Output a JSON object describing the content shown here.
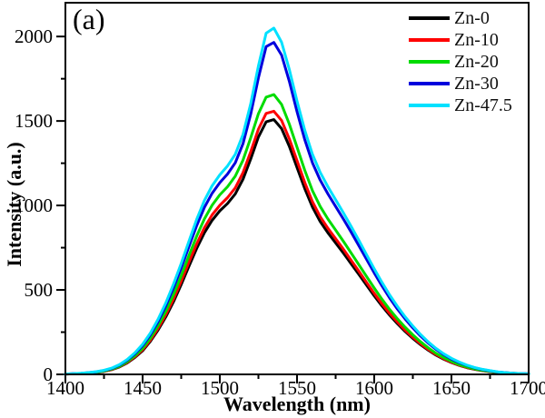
{
  "figure_label": "(a)",
  "axes": {
    "x": {
      "label": "Wavelength (nm)",
      "min": 1400,
      "max": 1700,
      "major_ticks": [
        1400,
        1450,
        1500,
        1550,
        1600,
        1650,
        1700
      ],
      "minor_step": 25
    },
    "y": {
      "label": "Intensity (a.u.)",
      "min": 0,
      "max": 2200,
      "major_ticks": [
        0,
        500,
        1000,
        1500,
        2000
      ],
      "minor_step": 250
    }
  },
  "legend": [
    {
      "label": "Zn-0",
      "color": "#000000"
    },
    {
      "label": "Zn-10",
      "color": "#ff0000"
    },
    {
      "label": "Zn-20",
      "color": "#00dc00"
    },
    {
      "label": "Zn-30",
      "color": "#0000dd"
    },
    {
      "label": "Zn-47.5",
      "color": "#00e1ff"
    }
  ],
  "chart_data": {
    "type": "line",
    "title": "",
    "xlabel": "Wavelength (nm)",
    "ylabel": "Intensity (a.u.)",
    "xlim": [
      1400,
      1700
    ],
    "ylim": [
      0,
      2200
    ],
    "grid": false,
    "legend_position": "top-right",
    "x": [
      1400,
      1405,
      1410,
      1415,
      1420,
      1425,
      1430,
      1435,
      1440,
      1445,
      1450,
      1455,
      1460,
      1465,
      1470,
      1475,
      1480,
      1485,
      1490,
      1495,
      1500,
      1505,
      1510,
      1515,
      1520,
      1525,
      1530,
      1535,
      1540,
      1545,
      1550,
      1555,
      1560,
      1565,
      1570,
      1575,
      1580,
      1585,
      1590,
      1595,
      1600,
      1605,
      1610,
      1615,
      1620,
      1625,
      1630,
      1635,
      1640,
      1645,
      1650,
      1655,
      1660,
      1665,
      1670,
      1675,
      1680,
      1685,
      1690,
      1695,
      1700
    ],
    "series": [
      {
        "name": "Zn-0",
        "color": "#000000",
        "values": [
          2,
          3,
          5,
          8,
          12,
          18,
          28,
          44,
          68,
          100,
          140,
          195,
          262,
          340,
          430,
          532,
          640,
          745,
          838,
          912,
          968,
          1012,
          1068,
          1155,
          1275,
          1405,
          1495,
          1508,
          1455,
          1350,
          1225,
          1100,
          990,
          905,
          838,
          778,
          718,
          655,
          592,
          528,
          465,
          405,
          350,
          300,
          254,
          213,
          176,
          143,
          114,
          90,
          70,
          53,
          40,
          30,
          22,
          16,
          11,
          8,
          6,
          4,
          3
        ]
      },
      {
        "name": "Zn-10",
        "color": "#ff0000",
        "values": [
          2,
          3,
          5,
          8,
          13,
          19,
          29,
          46,
          71,
          104,
          146,
          203,
          272,
          353,
          446,
          552,
          664,
          772,
          868,
          944,
          1001,
          1046,
          1104,
          1194,
          1318,
          1452,
          1545,
          1558,
          1503,
          1394,
          1265,
          1136,
          1022,
          934,
          865,
          803,
          741,
          676,
          611,
          545,
          480,
          418,
          361,
          310,
          262,
          220,
          182,
          148,
          118,
          93,
          72,
          55,
          41,
          31,
          23,
          17,
          11,
          8,
          6,
          4,
          3
        ]
      },
      {
        "name": "Zn-20",
        "color": "#00dc00",
        "values": [
          2,
          3,
          5,
          9,
          13,
          20,
          31,
          48,
          75,
          110,
          154,
          214,
          288,
          373,
          472,
          584,
          703,
          818,
          920,
          1001,
          1063,
          1111,
          1173,
          1268,
          1400,
          1543,
          1641,
          1656,
          1598,
          1482,
          1345,
          1208,
          1087,
          994,
          920,
          854,
          788,
          719,
          650,
          580,
          511,
          445,
          384,
          329,
          279,
          234,
          193,
          157,
          125,
          99,
          77,
          58,
          44,
          33,
          24,
          18,
          12,
          9,
          7,
          4,
          3
        ]
      },
      {
        "name": "Zn-30",
        "color": "#0000dd",
        "values": [
          2,
          4,
          6,
          10,
          15,
          23,
          35,
          55,
          84,
          122,
          170,
          234,
          312,
          405,
          512,
          630,
          756,
          880,
          988,
          1072,
          1135,
          1186,
          1252,
          1365,
          1540,
          1755,
          1940,
          1965,
          1890,
          1735,
          1555,
          1390,
          1252,
          1150,
          1068,
          994,
          920,
          843,
          763,
          682,
          601,
          524,
          452,
          387,
          328,
          275,
          227,
          185,
          148,
          117,
          91,
          70,
          53,
          39,
          29,
          21,
          14,
          10,
          7,
          5,
          3
        ]
      },
      {
        "name": "Zn-47.5",
        "color": "#00e1ff",
        "values": [
          2,
          4,
          7,
          11,
          16,
          24,
          37,
          58,
          88,
          128,
          178,
          244,
          326,
          423,
          534,
          657,
          788,
          917,
          1029,
          1116,
          1181,
          1234,
          1303,
          1420,
          1602,
          1826,
          2020,
          2050,
          1966,
          1805,
          1618,
          1446,
          1302,
          1196,
          1111,
          1034,
          957,
          877,
          794,
          709,
          625,
          545,
          470,
          403,
          341,
          286,
          236,
          192,
          154,
          122,
          95,
          73,
          55,
          41,
          30,
          22,
          15,
          10,
          7,
          5,
          3
        ]
      }
    ]
  }
}
